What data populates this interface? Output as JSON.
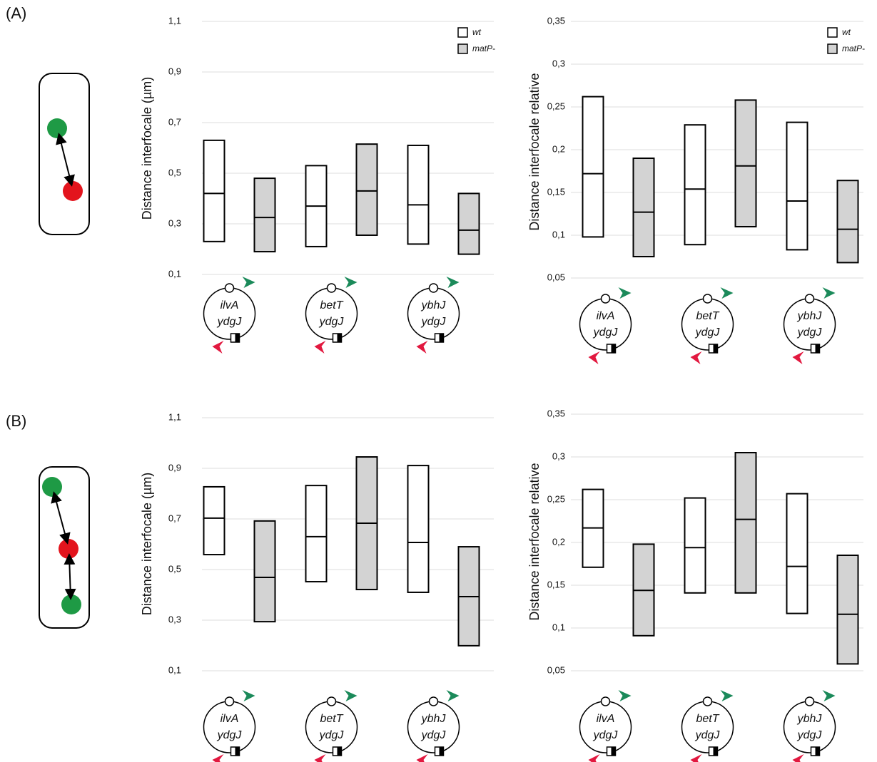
{
  "panel_labels": [
    "(A)",
    "(B)"
  ],
  "chart_data": [
    {
      "type": "range_bar",
      "ylabel": "Distance interfocale (µm)",
      "categories": [
        [
          "ilvA",
          "ydgJ"
        ],
        [
          "betT",
          "ydgJ"
        ],
        [
          "ybhJ",
          "ydgJ"
        ]
      ],
      "ylim": [
        0.1,
        1.1
      ],
      "yticks": [
        {
          "value": 0.1,
          "label": "0,1"
        },
        {
          "value": 0.3,
          "label": "0,3"
        },
        {
          "value": 0.5,
          "label": "0,5"
        },
        {
          "value": 0.7,
          "label": "0,7"
        },
        {
          "value": 0.9,
          "label": "0,9"
        },
        {
          "value": 1.1,
          "label": "1,1"
        }
      ],
      "grid": true,
      "legend": "upper right",
      "series": [
        {
          "name": "wt",
          "color": "#ffffff",
          "low": [
            0.23,
            0.21,
            0.22
          ],
          "values": [
            0.42,
            0.37,
            0.375
          ],
          "high": [
            0.63,
            0.53,
            0.61
          ]
        },
        {
          "name": "matP-",
          "color": "#d3d3d3",
          "low": [
            0.19,
            0.255,
            0.18
          ],
          "values": [
            0.325,
            0.43,
            0.275
          ],
          "high": [
            0.48,
            0.615,
            0.42
          ]
        }
      ]
    },
    {
      "type": "range_bar",
      "ylabel": "Distance interfocale relative",
      "categories": [
        [
          "ilvA",
          "ydgJ"
        ],
        [
          "betT",
          "ydgJ"
        ],
        [
          "ybhJ",
          "ydgJ"
        ]
      ],
      "ylim": [
        0.05,
        0.35
      ],
      "yticks": [
        {
          "value": 0.05,
          "label": "0,05"
        },
        {
          "value": 0.1,
          "label": "0,1"
        },
        {
          "value": 0.15,
          "label": "0,15"
        },
        {
          "value": 0.2,
          "label": "0,2"
        },
        {
          "value": 0.25,
          "label": "0,25"
        },
        {
          "value": 0.3,
          "label": "0,3"
        },
        {
          "value": 0.35,
          "label": "0,35"
        }
      ],
      "grid": true,
      "legend": "upper right",
      "series": [
        {
          "name": "wt",
          "color": "#ffffff",
          "low": [
            0.098,
            0.089,
            0.083
          ],
          "values": [
            0.172,
            0.154,
            0.14
          ],
          "high": [
            0.262,
            0.229,
            0.232
          ]
        },
        {
          "name": "matP-",
          "color": "#d3d3d3",
          "low": [
            0.075,
            0.11,
            0.068
          ],
          "values": [
            0.127,
            0.181,
            0.107
          ],
          "high": [
            0.19,
            0.258,
            0.164
          ]
        }
      ]
    },
    {
      "type": "range_bar",
      "ylabel": "Distance interfocale (µm)",
      "categories": [
        [
          "ilvA",
          "ydgJ"
        ],
        [
          "betT",
          "ydgJ"
        ],
        [
          "ybhJ",
          "ydgJ"
        ]
      ],
      "ylim": [
        0.1,
        1.1
      ],
      "yticks": [
        {
          "value": 0.1,
          "label": "0,1"
        },
        {
          "value": 0.3,
          "label": "0,3"
        },
        {
          "value": 0.5,
          "label": "0,5"
        },
        {
          "value": 0.7,
          "label": "0,7"
        },
        {
          "value": 0.9,
          "label": "0,9"
        },
        {
          "value": 1.1,
          "label": "1,1"
        }
      ],
      "grid": true,
      "series": [
        {
          "color": "#ffffff",
          "low": [
            0.559,
            0.452,
            0.41
          ],
          "values": [
            0.703,
            0.63,
            0.607
          ],
          "high": [
            0.827,
            0.832,
            0.911
          ]
        },
        {
          "color": "#d3d3d3",
          "low": [
            0.294,
            0.421,
            0.199
          ],
          "values": [
            0.469,
            0.683,
            0.393
          ],
          "high": [
            0.692,
            0.945,
            0.59
          ]
        }
      ]
    },
    {
      "type": "range_bar",
      "ylabel": "Distance interfocale relative",
      "categories": [
        [
          "ilvA",
          "ydgJ"
        ],
        [
          "betT",
          "ydgJ"
        ],
        [
          "ybhJ",
          "ydgJ"
        ]
      ],
      "ylim": [
        0.05,
        0.35
      ],
      "yticks": [
        {
          "value": 0.05,
          "label": "0,05"
        },
        {
          "value": 0.1,
          "label": "0,1"
        },
        {
          "value": 0.15,
          "label": "0,15"
        },
        {
          "value": 0.2,
          "label": "0,2"
        },
        {
          "value": 0.25,
          "label": "0,25"
        },
        {
          "value": 0.3,
          "label": "0,3"
        },
        {
          "value": 0.35,
          "label": "0,35"
        }
      ],
      "grid": true,
      "series": [
        {
          "color": "#ffffff",
          "low": [
            0.171,
            0.141,
            0.117
          ],
          "values": [
            0.217,
            0.194,
            0.172
          ],
          "high": [
            0.262,
            0.252,
            0.257
          ]
        },
        {
          "color": "#d3d3d3",
          "low": [
            0.091,
            0.141,
            0.058
          ],
          "values": [
            0.144,
            0.227,
            0.116
          ],
          "high": [
            0.198,
            0.305,
            0.185
          ]
        }
      ]
    }
  ]
}
